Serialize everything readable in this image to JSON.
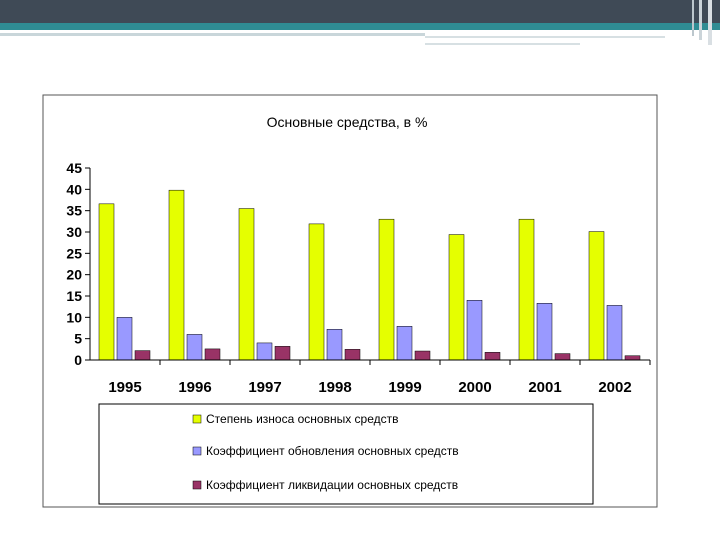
{
  "chart_data": {
    "type": "bar",
    "title": "Основные средства, в %",
    "categories": [
      "1995",
      "1996",
      "1997",
      "1998",
      "1999",
      "2000",
      "2001",
      "2002"
    ],
    "series": [
      {
        "name": "Степень износа основных средств",
        "values": [
          36.6,
          39.8,
          35.5,
          31.9,
          33.0,
          29.4,
          33.0,
          30.1
        ],
        "color": "#e5ff00"
      },
      {
        "name": "Коэффициент обновления основных средств",
        "values": [
          10.0,
          6.0,
          4.0,
          7.2,
          7.9,
          14.0,
          13.3,
          12.8
        ],
        "color": "#9999ff"
      },
      {
        "name": "Коэффициент ликвидации основных средств",
        "values": [
          2.2,
          2.6,
          3.2,
          2.5,
          2.1,
          1.8,
          1.5,
          1.0
        ],
        "color": "#993366"
      }
    ],
    "y_ticks": [
      "0",
      "5",
      "10",
      "15",
      "20",
      "25",
      "30",
      "35",
      "40",
      "45"
    ],
    "ylim": [
      0,
      45
    ],
    "grid": false,
    "legend_position": "bottom"
  }
}
